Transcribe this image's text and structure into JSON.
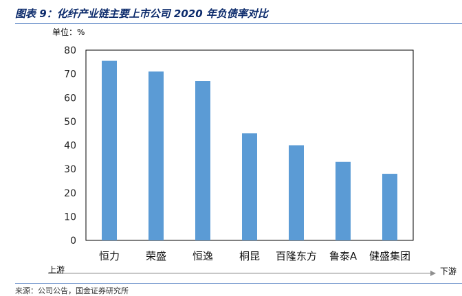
{
  "header": {
    "title": "图表 9：化纤产业链主要上市公司 2020 年负债率对比",
    "unit": "单位：%"
  },
  "chart_data": {
    "type": "bar",
    "categories": [
      "恒力",
      "荣盛",
      "恒逸",
      "桐昆",
      "百隆东方",
      "鲁泰A",
      "健盛集团"
    ],
    "values": [
      75.5,
      71,
      67,
      45,
      40,
      33,
      28
    ],
    "title": "",
    "xlabel": "",
    "ylabel": "",
    "ylim": [
      0,
      80
    ],
    "yticks": [
      0,
      10,
      20,
      30,
      40,
      50,
      60,
      70,
      80
    ],
    "grid": false,
    "bar_color": "#5b9bd5"
  },
  "annotations": {
    "upstream": "上游",
    "downstream": "下游"
  },
  "footer": {
    "source": "来源：公司公告，国金证券研究所"
  }
}
